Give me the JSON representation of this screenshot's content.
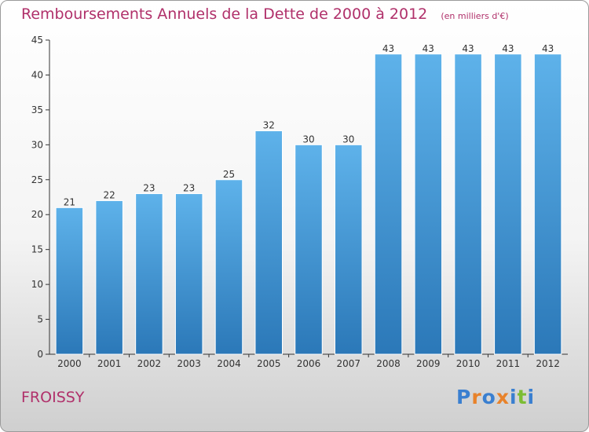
{
  "header": {
    "title": "Remboursements Annuels de la Dette de 2000 à 2012",
    "unit": "(en milliers d'€)"
  },
  "footer": {
    "place": "FROISSY",
    "logo": "Proxiti"
  },
  "colors": {
    "title": "#b0306a",
    "bar_top": "#5eb2ea",
    "bar_bottom": "#2b78b8",
    "logo_letters": [
      "#3a7fd0",
      "#e8822a",
      "#3a7fd0",
      "#e8822a",
      "#3a7fd0",
      "#7cbd34",
      "#3a7fd0"
    ]
  },
  "chart_data": {
    "type": "bar",
    "title": "Remboursements Annuels de la Dette de 2000 à 2012",
    "subtitle": "(en milliers d'€)",
    "categories": [
      "2000",
      "2001",
      "2002",
      "2003",
      "2004",
      "2005",
      "2006",
      "2007",
      "2008",
      "2009",
      "2010",
      "2011",
      "2012"
    ],
    "values": [
      21,
      22,
      23,
      23,
      25,
      32,
      30,
      30,
      43,
      43,
      43,
      43,
      43
    ],
    "ylim": [
      0,
      45
    ],
    "yticks": [
      0,
      5,
      10,
      15,
      20,
      25,
      30,
      35,
      40,
      45
    ],
    "grid": false,
    "data_labels": true
  }
}
